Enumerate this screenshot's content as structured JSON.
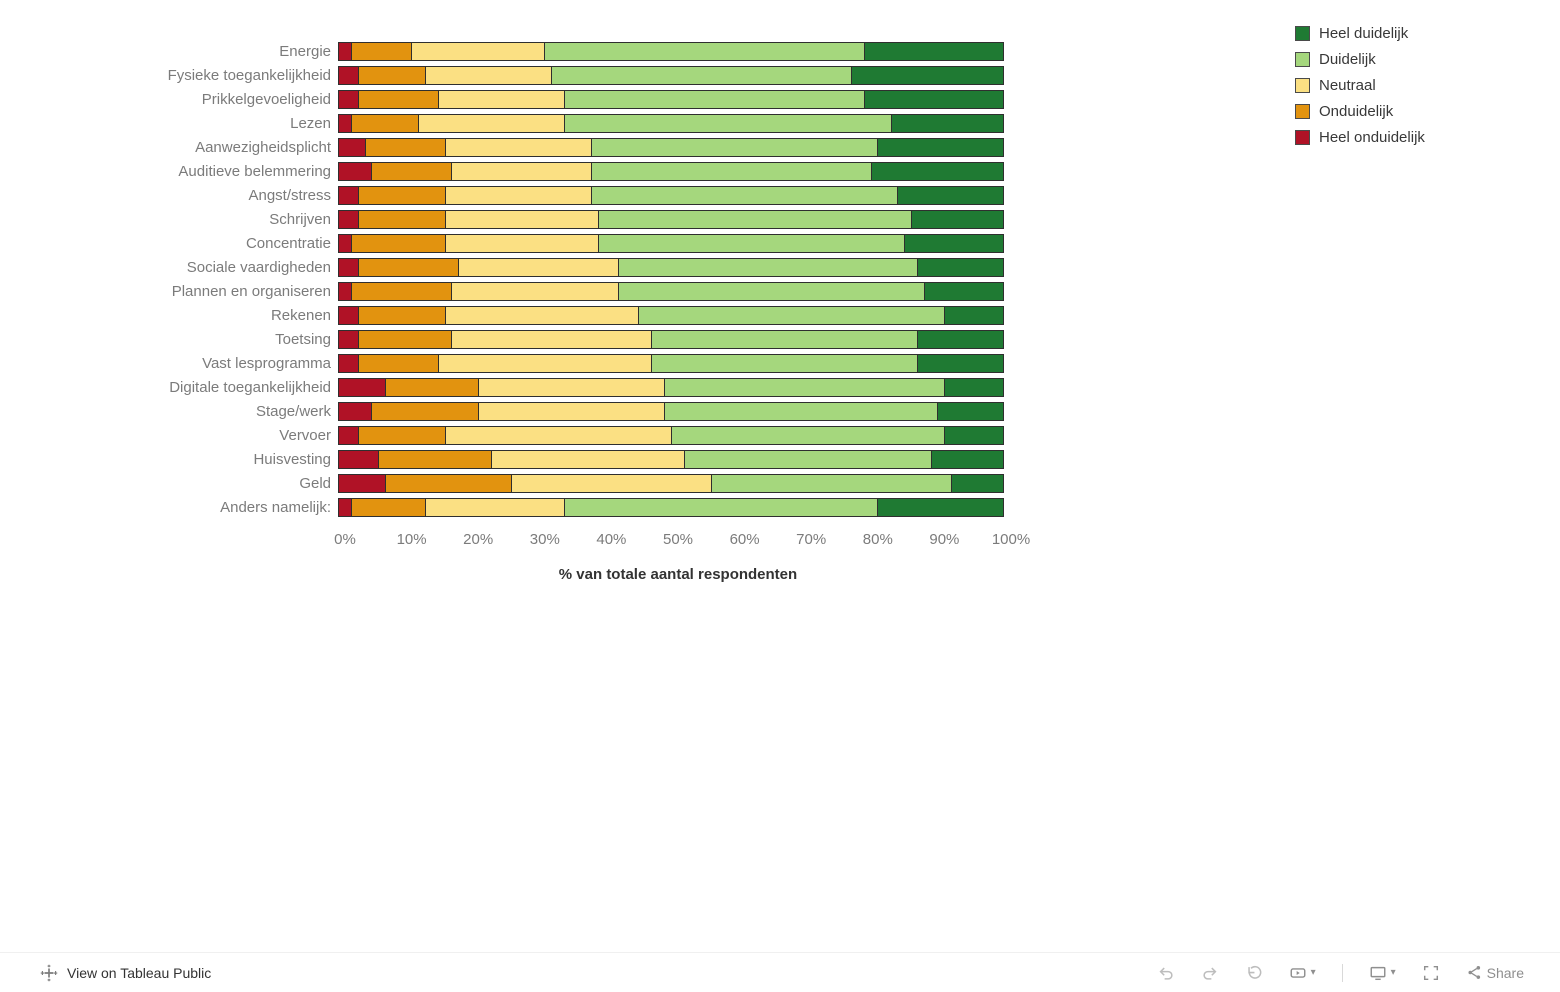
{
  "chart_data": {
    "type": "bar",
    "variant": "horizontal_stacked_percent",
    "title": "",
    "xlabel": "% van totale aantal respondenten",
    "xlim": [
      0,
      100
    ],
    "x_ticks": [
      "0%",
      "10%",
      "20%",
      "30%",
      "40%",
      "50%",
      "60%",
      "70%",
      "80%",
      "90%",
      "100%"
    ],
    "grid": false,
    "legend_position": "top-right",
    "categories": [
      "Energie",
      "Fysieke toegankelijkheid",
      "Prikkelgevoeligheid",
      "Lezen",
      "Aanwezigheidsplicht",
      "Auditieve belemmering",
      "Angst/stress",
      "Schrijven",
      "Concentratie",
      "Sociale vaardigheden",
      "Plannen en organiseren",
      "Rekenen",
      "Toetsing",
      "Vast lesprogramma",
      "Digitale toegankelijkheid",
      "Stage/werk",
      "Vervoer",
      "Huisvesting",
      "Geld",
      "Anders namelijk:"
    ],
    "series": [
      {
        "name": "Heel onduidelijk",
        "color": "#b01226",
        "values": [
          2,
          3,
          3,
          2,
          4,
          5,
          3,
          3,
          2,
          3,
          2,
          3,
          3,
          3,
          7,
          5,
          3,
          6,
          7,
          2
        ]
      },
      {
        "name": "Onduidelijk",
        "color": "#e2930f",
        "values": [
          9,
          10,
          12,
          10,
          12,
          12,
          13,
          13,
          14,
          15,
          15,
          13,
          14,
          12,
          14,
          16,
          13,
          17,
          19,
          11
        ]
      },
      {
        "name": "Neutraal",
        "color": "#fbe083",
        "values": [
          20,
          19,
          19,
          22,
          22,
          21,
          22,
          23,
          23,
          24,
          25,
          29,
          30,
          32,
          28,
          28,
          34,
          29,
          30,
          21
        ]
      },
      {
        "name": "Duidelijk",
        "color": "#a5d77d",
        "values": [
          48,
          45,
          45,
          49,
          43,
          42,
          46,
          47,
          46,
          45,
          46,
          46,
          40,
          40,
          42,
          41,
          41,
          37,
          36,
          47
        ]
      },
      {
        "name": "Heel duidelijk",
        "color": "#1f7a33",
        "values": [
          21,
          23,
          21,
          17,
          19,
          20,
          16,
          14,
          15,
          13,
          12,
          9,
          13,
          13,
          9,
          10,
          9,
          11,
          8,
          19
        ]
      }
    ]
  },
  "legend": {
    "items": [
      {
        "label": "Heel duidelijk",
        "color": "#1f7a33"
      },
      {
        "label": "Duidelijk",
        "color": "#a5d77d"
      },
      {
        "label": "Neutraal",
        "color": "#fbe083"
      },
      {
        "label": "Onduidelijk",
        "color": "#e2930f"
      },
      {
        "label": "Heel onduidelijk",
        "color": "#b01226"
      }
    ]
  },
  "toolbar": {
    "view_on_label": "View on Tableau Public",
    "share_label": "Share"
  },
  "icons": {
    "caret_down": "▾"
  }
}
